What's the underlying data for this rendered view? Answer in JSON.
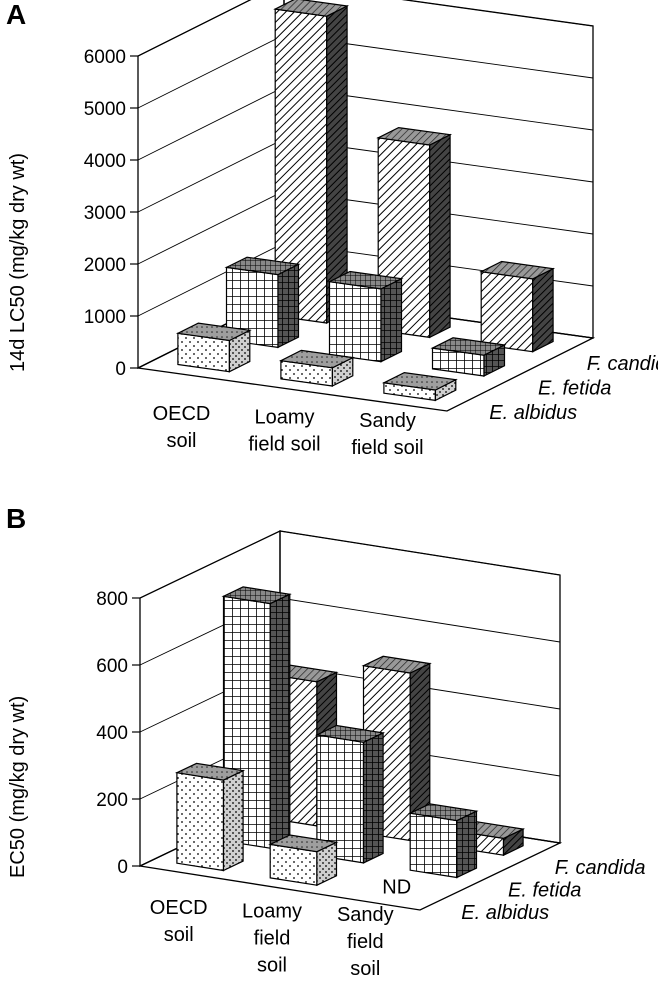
{
  "chart_data": [
    {
      "type": "bar",
      "panel": "A",
      "ylabel": "14d LC50 (mg/kg dry wt)",
      "yticks": [
        "0",
        "1000",
        "2000",
        "3000",
        "4000",
        "5000",
        "6000"
      ],
      "ylim": [
        0,
        6000
      ],
      "categories": [
        "OECD\nsoil",
        "Loamy\nfield soil",
        "Sandy\nfield soil"
      ],
      "series": [
        {
          "name": "E. albidus",
          "values": [
            600,
            350,
            200
          ],
          "pattern": "dots"
        },
        {
          "name": "E. fetida",
          "values": [
            1400,
            1400,
            400
          ],
          "pattern": "grid"
        },
        {
          "name": "F. candida",
          "values": [
            5900,
            3700,
            1400
          ],
          "pattern": "hatch"
        }
      ]
    },
    {
      "type": "bar",
      "panel": "B",
      "ylabel": "EC50 (mg/kg dry wt)",
      "yticks": [
        "0",
        "200",
        "400",
        "600",
        "800"
      ],
      "ylim": [
        0,
        800
      ],
      "categories": [
        "OECD\nsoil",
        "Loamy\nfield\nsoil",
        "Sandy\nfield\nsoil"
      ],
      "series": [
        {
          "name": "E. albidus",
          "values": [
            270,
            100,
            null
          ],
          "pattern": "dots"
        },
        {
          "name": "E. fetida",
          "values": [
            730,
            360,
            170
          ],
          "pattern": "grid"
        },
        {
          "name": "F. candida",
          "values": [
            430,
            500,
            50
          ],
          "pattern": "hatch"
        }
      ],
      "annotations": [
        "ND"
      ]
    }
  ]
}
